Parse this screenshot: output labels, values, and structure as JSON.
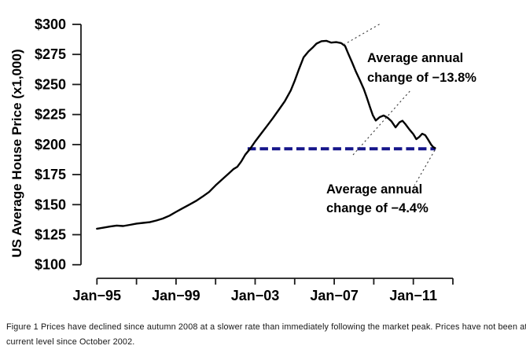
{
  "figure": {
    "caption": {
      "line1": "Figure 1 Prices have declined since autumn 2008 at a slower rate than immediately following the market peak. Prices have not been at the",
      "line2": "current level since October 2002."
    }
  },
  "colors": {
    "price_line": "#000000",
    "reference_dashed_line": "#15158a",
    "reference_shadow": "#b7b7b7",
    "leader_dotted": "#3c3c3c"
  },
  "chart_data": {
    "type": "line",
    "title": "",
    "xlabel": "",
    "ylabel": "US Average House Price (x1,000)",
    "ylim": [
      100,
      300
    ],
    "xlim_years": [
      1995,
      2013
    ],
    "grid": "off",
    "legend": "none",
    "y_ticks": [
      {
        "value": 100,
        "label": "$100"
      },
      {
        "value": 125,
        "label": "$125"
      },
      {
        "value": 150,
        "label": "$150"
      },
      {
        "value": 175,
        "label": "$175"
      },
      {
        "value": 200,
        "label": "$200"
      },
      {
        "value": 225,
        "label": "$225"
      },
      {
        "value": 250,
        "label": "$250"
      },
      {
        "value": 275,
        "label": "$275"
      },
      {
        "value": 300,
        "label": "$300"
      }
    ],
    "x_ticks": [
      {
        "year": 1995,
        "label": "Jan−95"
      },
      {
        "year": 1997,
        "label": ""
      },
      {
        "year": 1999,
        "label": "Jan−99"
      },
      {
        "year": 2001,
        "label": ""
      },
      {
        "year": 2003,
        "label": "Jan−03"
      },
      {
        "year": 2005,
        "label": ""
      },
      {
        "year": 2007,
        "label": "Jan−07"
      },
      {
        "year": 2009,
        "label": ""
      },
      {
        "year": 2011,
        "label": "Jan−11"
      },
      {
        "year": 2013,
        "label": ""
      }
    ],
    "series": [
      {
        "name": "US average house price (x$1,000)",
        "points": [
          [
            1995.0,
            130
          ],
          [
            1995.33,
            130.8
          ],
          [
            1995.67,
            131.8
          ],
          [
            1996.0,
            132.6
          ],
          [
            1996.33,
            132.2
          ],
          [
            1996.67,
            133.2
          ],
          [
            1997.0,
            134.2
          ],
          [
            1997.33,
            134.8
          ],
          [
            1997.67,
            135.4
          ],
          [
            1998.0,
            136.8
          ],
          [
            1998.33,
            138.4
          ],
          [
            1998.67,
            140.8
          ],
          [
            1999.0,
            144
          ],
          [
            1999.33,
            147
          ],
          [
            1999.67,
            150
          ],
          [
            2000.0,
            153
          ],
          [
            2000.33,
            156.5
          ],
          [
            2000.67,
            160.5
          ],
          [
            2001.0,
            166
          ],
          [
            2001.33,
            171
          ],
          [
            2001.67,
            176
          ],
          [
            2001.9,
            179.5
          ],
          [
            2002.1,
            181.5
          ],
          [
            2002.3,
            186
          ],
          [
            2002.5,
            191.5
          ],
          [
            2002.75,
            196.5
          ],
          [
            2003.0,
            202.5
          ],
          [
            2003.3,
            209
          ],
          [
            2003.6,
            215.5
          ],
          [
            2003.9,
            222
          ],
          [
            2004.2,
            229
          ],
          [
            2004.5,
            236
          ],
          [
            2004.8,
            245
          ],
          [
            2005.0,
            253
          ],
          [
            2005.2,
            262
          ],
          [
            2005.45,
            272.5
          ],
          [
            2005.7,
            277.5
          ],
          [
            2005.9,
            280.5
          ],
          [
            2006.1,
            284
          ],
          [
            2006.35,
            286
          ],
          [
            2006.6,
            286.3
          ],
          [
            2006.85,
            284.8
          ],
          [
            2007.1,
            285.2
          ],
          [
            2007.35,
            284.4
          ],
          [
            2007.55,
            282
          ],
          [
            2007.7,
            276
          ],
          [
            2007.9,
            268.5
          ],
          [
            2008.1,
            260.5
          ],
          [
            2008.3,
            253.5
          ],
          [
            2008.5,
            246
          ],
          [
            2008.65,
            239
          ],
          [
            2008.8,
            231.5
          ],
          [
            2008.95,
            224.5
          ],
          [
            2009.1,
            220
          ],
          [
            2009.3,
            222.8
          ],
          [
            2009.5,
            224.2
          ],
          [
            2009.7,
            222.3
          ],
          [
            2009.9,
            219.3
          ],
          [
            2010.1,
            214.3
          ],
          [
            2010.3,
            218.5
          ],
          [
            2010.45,
            219.8
          ],
          [
            2010.6,
            217
          ],
          [
            2010.8,
            212.5
          ],
          [
            2011.0,
            208.7
          ],
          [
            2011.15,
            204.5
          ],
          [
            2011.3,
            206.3
          ],
          [
            2011.45,
            209
          ],
          [
            2011.6,
            207.8
          ],
          [
            2011.75,
            204
          ],
          [
            2011.9,
            200
          ],
          [
            2012.0,
            198
          ],
          [
            2012.1,
            197
          ]
        ]
      }
    ],
    "reference_line": {
      "value": 196.5,
      "from_year": 2002.62,
      "to_year": 2012.12,
      "style": "dashed",
      "color": "#15158a"
    },
    "annotations": [
      {
        "lines": [
          "Average annual",
          "change of −13.8%"
        ]
      },
      {
        "lines": [
          "Average annual",
          "change of −4.4%"
        ]
      }
    ]
  }
}
